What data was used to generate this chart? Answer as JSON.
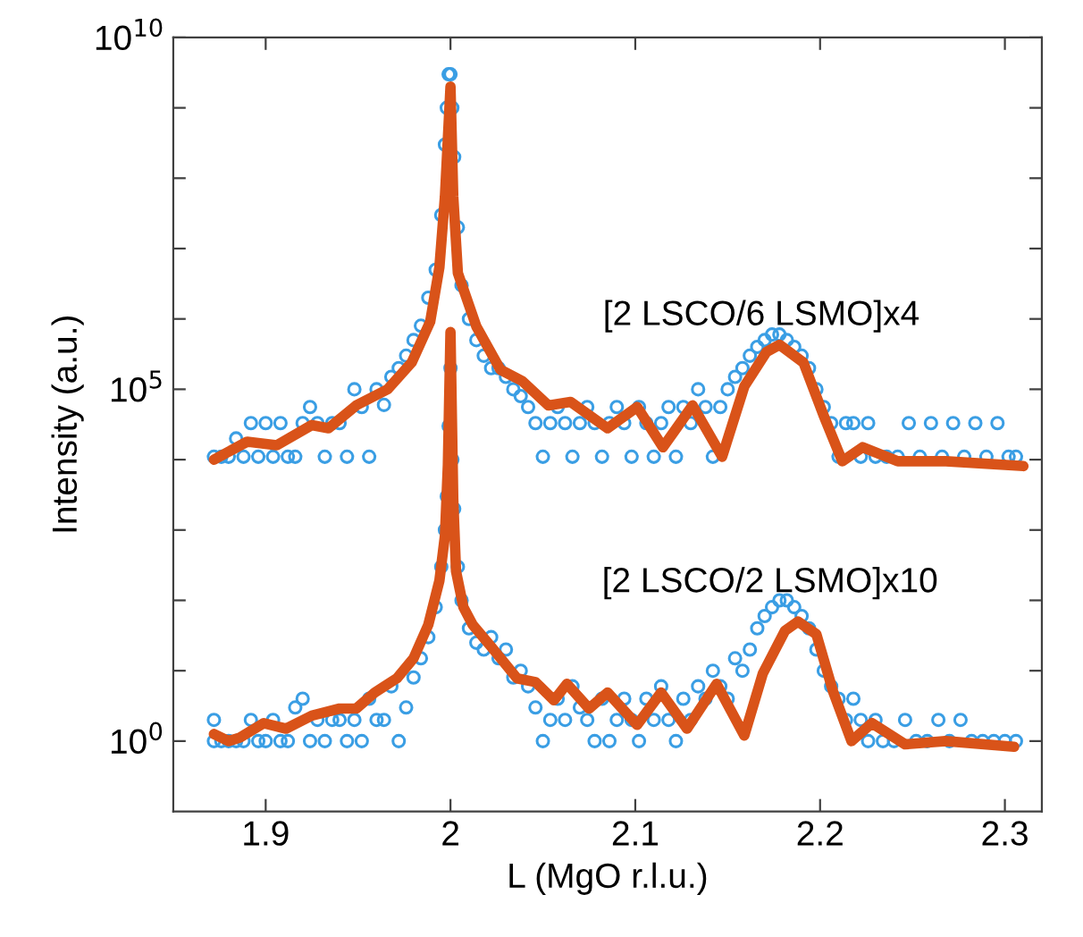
{
  "chart_data": {
    "type": "scatter",
    "xlabel": "L (MgO r.l.u.)",
    "ylabel": "Intensity (a.u.)",
    "log": "y",
    "grid": false,
    "xlim": [
      1.85,
      2.32
    ],
    "xticks": [
      1.9,
      2,
      2.1,
      2.2,
      2.3
    ],
    "ylim": [
      0.1,
      10000000000
    ],
    "yticks": [
      {
        "value": 1,
        "label": "10$^{0}$"
      },
      {
        "value": 10,
        "label": null
      },
      {
        "value": 100,
        "label": null
      },
      {
        "value": 1000,
        "label": null
      },
      {
        "value": 10000,
        "label": null
      },
      {
        "value": 100000,
        "label": "10$^{5}$"
      },
      {
        "value": 1000000,
        "label": null
      },
      {
        "value": 10000000,
        "label": null
      },
      {
        "value": 100000000,
        "label": null
      },
      {
        "value": 1000000000,
        "label": null
      },
      {
        "value": 10000000000,
        "label": "10$^{10}$"
      }
    ],
    "annotations": [
      "[2 LSCO/6 LSMO]x4",
      "[2 LSCO/2 LSMO]x10"
    ],
    "series": [
      {
        "marker": "circle",
        "color": "#3a9ee4",
        "x": [
          1.872,
          1.872,
          1.876,
          1.88,
          1.884,
          1.888,
          1.892,
          1.896,
          1.9,
          1.904,
          1.908,
          1.912,
          1.916,
          1.92,
          1.924,
          1.928,
          1.932,
          1.936,
          1.94,
          1.944,
          1.948,
          1.952,
          1.956,
          1.96,
          1.964,
          1.968,
          1.972,
          1.976,
          1.98,
          1.984,
          1.988,
          1.992,
          1.995,
          1.997,
          1.998,
          1.999,
          2.0,
          2.001,
          2.002,
          2.004,
          2.006,
          2.01,
          2.014,
          2.018,
          2.022,
          2.026,
          2.03,
          2.034,
          2.038,
          2.042,
          2.046,
          2.05,
          2.054,
          2.058,
          2.062,
          2.066,
          2.07,
          2.074,
          2.078,
          2.082,
          2.086,
          2.09,
          2.094,
          2.098,
          2.102,
          2.106,
          2.11,
          2.114,
          2.118,
          2.122,
          2.126,
          2.13,
          2.134,
          2.138,
          2.142,
          2.146,
          2.15,
          2.154,
          2.158,
          2.162,
          2.166,
          2.17,
          2.174,
          2.178,
          2.182,
          2.186,
          2.19,
          2.194,
          2.198,
          2.202,
          2.206,
          2.21,
          2.214,
          2.218,
          2.222,
          2.226,
          2.23,
          2.234,
          2.24,
          2.246,
          2.252,
          2.258,
          2.264,
          2.27,
          2.276,
          2.282,
          2.288,
          2.294,
          2.3,
          2.306
        ],
        "values": [
          1,
          2,
          1,
          1,
          1,
          1,
          2,
          1,
          1,
          2,
          1,
          1,
          3,
          4,
          1,
          2,
          1,
          2,
          2,
          1,
          2,
          1,
          4,
          2,
          2,
          6,
          1,
          3,
          8,
          15,
          30,
          80,
          300,
          1000,
          3000,
          30000,
          200000,
          10000,
          2000,
          300,
          100,
          40,
          25,
          20,
          30,
          15,
          20,
          8,
          10,
          6,
          3,
          1,
          2,
          4,
          2,
          6,
          3,
          2,
          1,
          4,
          1,
          2,
          4,
          2,
          1,
          4,
          2,
          6,
          2,
          1,
          4,
          2,
          6,
          4,
          10,
          6,
          4,
          15,
          10,
          20,
          40,
          60,
          80,
          100,
          100,
          80,
          60,
          40,
          20,
          10,
          6,
          4,
          2,
          4,
          2,
          1,
          2,
          1,
          1,
          2,
          1,
          1,
          2,
          1,
          2,
          1,
          1,
          1,
          1,
          1
        ]
      },
      {
        "type": "line",
        "marker": "none",
        "line_style": "solid",
        "color": "#d95319",
        "x": [
          1.872,
          1.88,
          1.886,
          1.899,
          1.911,
          1.925,
          1.94,
          1.949,
          1.959,
          1.971,
          1.98,
          1.988,
          1.994,
          1.997,
          1.9986,
          2.0,
          2.0015,
          2.003,
          2.007,
          2.012,
          2.022,
          2.036,
          2.046,
          2.056,
          2.063,
          2.075,
          2.085,
          2.101,
          2.114,
          2.128,
          2.144,
          2.159,
          2.169,
          2.181,
          2.188,
          2.198,
          2.207,
          2.217,
          2.228,
          2.246,
          2.268,
          2.305
        ],
        "values": [
          1.26,
          1.0,
          1.12,
          1.8,
          1.5,
          2.3,
          2.9,
          2.9,
          4.9,
          7.8,
          15,
          45,
          190,
          830,
          8500,
          650000,
          2700,
          260,
          80,
          45,
          22,
          7.8,
          6.9,
          3.8,
          6.5,
          2.9,
          4.9,
          1.7,
          4.9,
          1.5,
          6.5,
          1.2,
          9.1,
          37,
          50,
          33,
          5.1,
          1.0,
          1.8,
          0.9,
          1.0,
          0.83
        ]
      },
      {
        "marker": "circle",
        "color": "#3a9ee4",
        "x": [
          1.872,
          1.876,
          1.88,
          1.884,
          1.888,
          1.892,
          1.896,
          1.9,
          1.904,
          1.908,
          1.912,
          1.916,
          1.92,
          1.924,
          1.928,
          1.932,
          1.936,
          1.94,
          1.944,
          1.948,
          1.952,
          1.956,
          1.96,
          1.964,
          1.968,
          1.972,
          1.976,
          1.98,
          1.984,
          1.988,
          1.992,
          1.995,
          1.997,
          1.998,
          1.999,
          2.0,
          2.001,
          2.002,
          2.004,
          2.006,
          2.01,
          2.014,
          2.018,
          2.022,
          2.026,
          2.03,
          2.034,
          2.038,
          2.042,
          2.046,
          2.05,
          2.054,
          2.058,
          2.062,
          2.066,
          2.07,
          2.074,
          2.078,
          2.082,
          2.086,
          2.09,
          2.094,
          2.098,
          2.102,
          2.106,
          2.11,
          2.114,
          2.118,
          2.122,
          2.126,
          2.13,
          2.134,
          2.138,
          2.142,
          2.146,
          2.15,
          2.154,
          2.158,
          2.162,
          2.166,
          2.17,
          2.174,
          2.178,
          2.182,
          2.186,
          2.19,
          2.194,
          2.198,
          2.202,
          2.206,
          2.21,
          2.214,
          2.218,
          2.222,
          2.226,
          2.23,
          2.236,
          2.242,
          2.248,
          2.254,
          2.26,
          2.266,
          2.272,
          2.278,
          2.284,
          2.29,
          2.296,
          2.302,
          2.306
        ],
        "values": [
          11000,
          11000,
          11000,
          20000,
          11000,
          33000,
          11000,
          33000,
          11000,
          33000,
          11000,
          11000,
          33000,
          56000,
          33000,
          11000,
          33000,
          33000,
          11000,
          100000,
          56000,
          11000,
          100000,
          60000,
          150000,
          200000,
          300000,
          500000,
          800000,
          2000000,
          5000000,
          30000000,
          300000000,
          1000000000,
          3000000000,
          3000000000,
          1000000000,
          200000000,
          20000000,
          3000000,
          1000000,
          500000,
          300000,
          200000,
          200000,
          150000,
          100000,
          80000,
          56000,
          33000,
          11000,
          33000,
          56000,
          33000,
          11000,
          33000,
          56000,
          33000,
          11000,
          33000,
          56000,
          33000,
          11000,
          56000,
          33000,
          11000,
          33000,
          56000,
          11000,
          56000,
          33000,
          100000,
          56000,
          11000,
          56000,
          100000,
          150000,
          200000,
          300000,
          400000,
          500000,
          600000,
          600000,
          500000,
          400000,
          300000,
          200000,
          100000,
          56000,
          33000,
          11000,
          33000,
          33000,
          11000,
          33000,
          11000,
          11000,
          11000,
          33000,
          11000,
          33000,
          11000,
          33000,
          11000,
          33000,
          11000,
          33000,
          11000,
          11000
        ]
      },
      {
        "type": "line",
        "marker": "none",
        "line_style": "solid",
        "color": "#d95319",
        "x": [
          1.872,
          1.89,
          1.906,
          1.925,
          1.934,
          1.949,
          1.966,
          1.979,
          1.989,
          1.994,
          1.997,
          2.0,
          2.0015,
          2.004,
          2.014,
          2.027,
          2.039,
          2.053,
          2.065,
          2.085,
          2.101,
          2.115,
          2.131,
          2.147,
          2.159,
          2.171,
          2.178,
          2.191,
          2.202,
          2.212,
          2.223,
          2.242,
          2.268,
          2.31
        ],
        "values": [
          10000,
          18000,
          16000,
          31000,
          28000,
          59000,
          100000,
          240000,
          910000,
          5400000,
          55000000,
          2000000000,
          55000000,
          4500000,
          780000,
          190000,
          130000,
          59000,
          66000,
          28000,
          56000,
          15000,
          59000,
          11000,
          110000,
          340000,
          430000,
          240000,
          42000,
          9500,
          15000,
          9500,
          9500,
          8100
        ]
      }
    ]
  }
}
